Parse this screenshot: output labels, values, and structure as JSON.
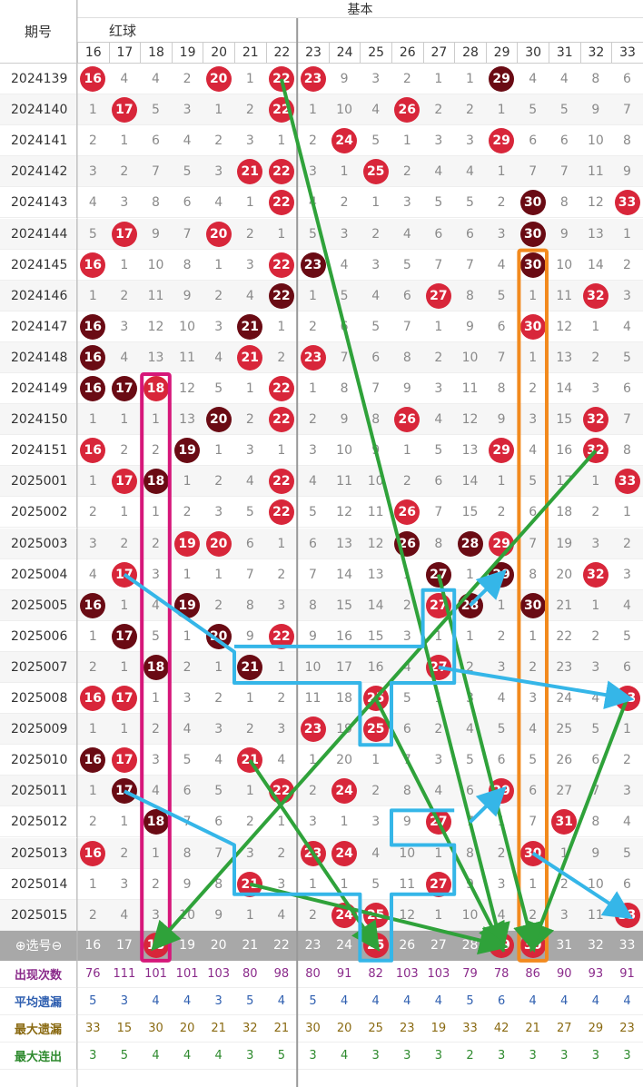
{
  "header": {
    "issue_label": "期号",
    "section_label": "基本",
    "group_label": "红球",
    "columns": [
      16,
      17,
      18,
      19,
      20,
      21,
      22,
      23,
      24,
      25,
      26,
      27,
      28,
      29,
      30,
      31,
      32,
      33
    ]
  },
  "colors": {
    "ball_red": "#d8263a",
    "ball_dark": "#6a0b14",
    "green_line": "#2fa23a",
    "blue_line": "#35b6e8",
    "magenta_box": "#d6177a",
    "orange_box": "#f28a1e",
    "row_alt": "#f6f6f6",
    "select_row_bg": "#a8a8a8"
  },
  "chart_data": {
    "type": "table",
    "title": "",
    "issues": [
      "2024139",
      "2024140",
      "2024141",
      "2024142",
      "2024143",
      "2024144",
      "2024145",
      "2024146",
      "2024147",
      "2024148",
      "2024149",
      "2024150",
      "2024151",
      "2025001",
      "2025002",
      "2025003",
      "2025004",
      "2025005",
      "2025006",
      "2025007",
      "2025008",
      "2025009",
      "2025010",
      "2025011",
      "2025012",
      "2025013",
      "2025014",
      "2025015"
    ],
    "rows": [
      [
        "16r",
        "4",
        "4",
        "2",
        "20r",
        "1",
        "22r",
        "23r",
        "9",
        "3",
        "2",
        "1",
        "1",
        "29d",
        "4",
        "4",
        "8",
        "6"
      ],
      [
        "1",
        "17r",
        "5",
        "3",
        "1",
        "2",
        "22r",
        "1",
        "10",
        "4",
        "26r",
        "2",
        "2",
        "1",
        "5",
        "5",
        "9",
        "7"
      ],
      [
        "2",
        "1",
        "6",
        "4",
        "2",
        "3",
        "1",
        "2",
        "24r",
        "5",
        "1",
        "3",
        "3",
        "29r",
        "6",
        "6",
        "10",
        "8"
      ],
      [
        "3",
        "2",
        "7",
        "5",
        "3",
        "21r",
        "22r",
        "3",
        "1",
        "25r",
        "2",
        "4",
        "4",
        "1",
        "7",
        "7",
        "11",
        "9"
      ],
      [
        "4",
        "3",
        "8",
        "6",
        "4",
        "1",
        "22r",
        "4",
        "2",
        "1",
        "3",
        "5",
        "5",
        "2",
        "30d",
        "8",
        "12",
        "33r"
      ],
      [
        "5",
        "17r",
        "9",
        "7",
        "20r",
        "2",
        "1",
        "5",
        "3",
        "2",
        "4",
        "6",
        "6",
        "3",
        "30d",
        "9",
        "13",
        "1"
      ],
      [
        "16r",
        "1",
        "10",
        "8",
        "1",
        "3",
        "22r",
        "23d",
        "4",
        "3",
        "5",
        "7",
        "7",
        "4",
        "30d",
        "10",
        "14",
        "2"
      ],
      [
        "1",
        "2",
        "11",
        "9",
        "2",
        "4",
        "22d",
        "1",
        "5",
        "4",
        "6",
        "27r",
        "8",
        "5",
        "1",
        "11",
        "32r",
        "3"
      ],
      [
        "16d",
        "3",
        "12",
        "10",
        "3",
        "21d",
        "1",
        "2",
        "6",
        "5",
        "7",
        "1",
        "9",
        "6",
        "30r",
        "12",
        "1",
        "4"
      ],
      [
        "16d",
        "4",
        "13",
        "11",
        "4",
        "21r",
        "2",
        "23r",
        "7",
        "6",
        "8",
        "2",
        "10",
        "7",
        "1",
        "13",
        "2",
        "5"
      ],
      [
        "16d",
        "17d",
        "18r",
        "12",
        "5",
        "1",
        "22r",
        "1",
        "8",
        "7",
        "9",
        "3",
        "11",
        "8",
        "2",
        "14",
        "3",
        "6"
      ],
      [
        "1",
        "1",
        "1",
        "13",
        "20d",
        "2",
        "22r",
        "2",
        "9",
        "8",
        "26r",
        "4",
        "12",
        "9",
        "3",
        "15",
        "32r",
        "7"
      ],
      [
        "16r",
        "2",
        "2",
        "19d",
        "1",
        "3",
        "1",
        "3",
        "10",
        "9",
        "1",
        "5",
        "13",
        "29r",
        "4",
        "16",
        "32r",
        "8"
      ],
      [
        "1",
        "17r",
        "18d",
        "1",
        "2",
        "4",
        "22r",
        "4",
        "11",
        "10",
        "2",
        "6",
        "14",
        "1",
        "5",
        "17",
        "1",
        "33r"
      ],
      [
        "2",
        "1",
        "1",
        "2",
        "3",
        "5",
        "22r",
        "5",
        "12",
        "11",
        "26r",
        "7",
        "15",
        "2",
        "6",
        "18",
        "2",
        "1"
      ],
      [
        "3",
        "2",
        "2",
        "19r",
        "20r",
        "6",
        "1",
        "6",
        "13",
        "12",
        "26d",
        "8",
        "28d",
        "29r",
        "7",
        "19",
        "3",
        "2"
      ],
      [
        "4",
        "17r",
        "3",
        "1",
        "1",
        "7",
        "2",
        "7",
        "14",
        "13",
        "1",
        "27d",
        "1",
        "29d",
        "8",
        "20",
        "32r",
        "3"
      ],
      [
        "16d",
        "1",
        "4",
        "19d",
        "2",
        "8",
        "3",
        "8",
        "15",
        "14",
        "2",
        "27r",
        "28d",
        "1",
        "30d",
        "21",
        "1",
        "4"
      ],
      [
        "1",
        "17d",
        "5",
        "1",
        "20d",
        "9",
        "22r",
        "9",
        "16",
        "15",
        "3",
        "1",
        "1",
        "2",
        "1",
        "22",
        "2",
        "5"
      ],
      [
        "2",
        "1",
        "18d",
        "2",
        "1",
        "21d",
        "1",
        "10",
        "17",
        "16",
        "4",
        "27r",
        "2",
        "3",
        "2",
        "23",
        "3",
        "6"
      ],
      [
        "16r",
        "17r",
        "1",
        "3",
        "2",
        "1",
        "2",
        "11",
        "18",
        "25r",
        "5",
        "1",
        "3",
        "4",
        "3",
        "24",
        "4",
        "33r"
      ],
      [
        "1",
        "1",
        "2",
        "4",
        "3",
        "2",
        "3",
        "23r",
        "19",
        "25r",
        "6",
        "2",
        "4",
        "5",
        "4",
        "25",
        "5",
        "1"
      ],
      [
        "16d",
        "17r",
        "3",
        "5",
        "4",
        "21r",
        "4",
        "1",
        "20",
        "1",
        "7",
        "3",
        "5",
        "6",
        "5",
        "26",
        "6",
        "2"
      ],
      [
        "1",
        "17d",
        "4",
        "6",
        "5",
        "1",
        "22r",
        "2",
        "24r",
        "2",
        "8",
        "4",
        "6",
        "29r",
        "6",
        "27",
        "7",
        "3"
      ],
      [
        "2",
        "1",
        "18d",
        "7",
        "6",
        "2",
        "1",
        "3",
        "1",
        "3",
        "9",
        "27r",
        "7",
        "1",
        "7",
        "31r",
        "8",
        "4"
      ],
      [
        "16r",
        "2",
        "1",
        "8",
        "7",
        "3",
        "2",
        "23r",
        "24r",
        "4",
        "10",
        "1",
        "8",
        "2",
        "30r",
        "1",
        "9",
        "5"
      ],
      [
        "1",
        "3",
        "2",
        "9",
        "8",
        "21r",
        "3",
        "1",
        "1",
        "5",
        "11",
        "27r",
        "9",
        "3",
        "1",
        "2",
        "10",
        "6"
      ],
      [
        "2",
        "4",
        "3",
        "10",
        "9",
        "1",
        "4",
        "2",
        "24r",
        "25r",
        "12",
        "1",
        "10",
        "4",
        "2",
        "3",
        "11",
        "33r"
      ]
    ],
    "select_row": {
      "label": "⊕选号⊖",
      "values": [
        "16",
        "17",
        "18",
        "19",
        "20",
        "21",
        "22",
        "23",
        "24",
        "25",
        "26",
        "27",
        "28",
        "29",
        "30",
        "31",
        "32",
        "33"
      ],
      "selected": [
        18,
        25,
        29,
        30
      ]
    },
    "stats": [
      {
        "label": "出现次数",
        "color": "#8b2b8b",
        "values": [
          76,
          111,
          101,
          101,
          103,
          80,
          98,
          80,
          91,
          82,
          103,
          103,
          79,
          78,
          86,
          90,
          93,
          91
        ]
      },
      {
        "label": "平均遗漏",
        "color": "#2f5fb0",
        "values": [
          5,
          3,
          4,
          4,
          3,
          5,
          4,
          5,
          4,
          4,
          4,
          4,
          5,
          6,
          4,
          4,
          4,
          4
        ]
      },
      {
        "label": "最大遗漏",
        "color": "#8a6a12",
        "values": [
          33,
          15,
          30,
          20,
          21,
          32,
          21,
          30,
          20,
          25,
          23,
          19,
          33,
          42,
          21,
          27,
          29,
          23
        ]
      },
      {
        "label": "最大连出",
        "color": "#2e8a2e",
        "values": [
          3,
          5,
          4,
          4,
          4,
          3,
          5,
          3,
          4,
          3,
          3,
          3,
          2,
          3,
          3,
          3,
          3,
          3
        ]
      }
    ]
  }
}
